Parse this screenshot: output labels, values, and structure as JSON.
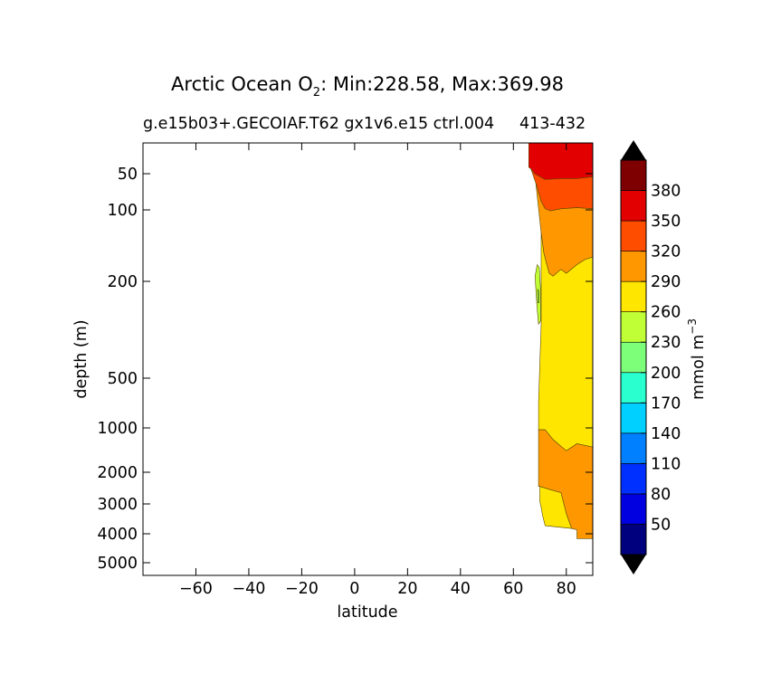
{
  "chart_data": {
    "type": "contour",
    "title": {
      "prefix": "Arctic Ocean O",
      "subscript": "2",
      "suffix": ": Min:228.58, Max:369.98"
    },
    "subtitle_left": "g.e15b03+.GECOIAF.T62 gx1v6.e15 ctrl.004",
    "subtitle_right": "413-432",
    "xlabel": "latitude",
    "ylabel": "depth (m)",
    "xlim": [
      -80,
      90
    ],
    "x_ticks": [
      {
        "value": -60,
        "label": "−60"
      },
      {
        "value": -40,
        "label": "−40"
      },
      {
        "value": -20,
        "label": "−20"
      },
      {
        "value": 0,
        "label": "0"
      },
      {
        "value": 20,
        "label": "20"
      },
      {
        "value": 40,
        "label": "40"
      },
      {
        "value": 60,
        "label": "60"
      },
      {
        "value": 80,
        "label": "80"
      }
    ],
    "y_ticks": [
      {
        "value": 50,
        "label": "50"
      },
      {
        "value": 100,
        "label": "100"
      },
      {
        "value": 200,
        "label": "200"
      },
      {
        "value": 500,
        "label": "500"
      },
      {
        "value": 1000,
        "label": "1000"
      },
      {
        "value": 2000,
        "label": "2000"
      },
      {
        "value": 3000,
        "label": "3000"
      },
      {
        "value": 4000,
        "label": "4000"
      },
      {
        "value": 5000,
        "label": "5000"
      }
    ],
    "colorbar": {
      "label_main": "mmol m",
      "label_sup": "−3",
      "levels": [
        20,
        50,
        80,
        110,
        140,
        170,
        200,
        230,
        260,
        290,
        320,
        350,
        380,
        410
      ],
      "tick_labels": [
        "50",
        "80",
        "110",
        "140",
        "170",
        "200",
        "230",
        "260",
        "290",
        "320",
        "350",
        "380"
      ],
      "colors": [
        "#00007f",
        "#0000e0",
        "#0030ff",
        "#0080ff",
        "#00d0ff",
        "#2affd0",
        "#7dff7a",
        "#c0ff36",
        "#ffe600",
        "#ff9800",
        "#ff4d00",
        "#e20000",
        "#7f0000"
      ],
      "extend_low_color": "#000000",
      "extend_high_color": "#000000"
    },
    "regions": [
      {
        "level_color": "#e20000",
        "range": "350-380",
        "outline": [
          [
            65.8,
            30
          ],
          [
            90,
            30
          ],
          [
            90,
            53
          ],
          [
            84,
            55
          ],
          [
            78,
            55
          ],
          [
            72,
            56
          ],
          [
            70,
            53
          ],
          [
            68,
            50
          ],
          [
            66.6,
            46
          ],
          [
            65.8,
            45
          ]
        ]
      },
      {
        "level_color": "#ff4d00",
        "range": "320-350",
        "outline": [
          [
            66.6,
            46
          ],
          [
            68,
            50
          ],
          [
            70,
            53
          ],
          [
            72,
            56
          ],
          [
            78,
            55
          ],
          [
            84,
            55
          ],
          [
            90,
            53
          ],
          [
            90,
            98
          ],
          [
            84,
            96
          ],
          [
            78,
            98
          ],
          [
            74,
            101
          ],
          [
            72,
            98
          ],
          [
            70.5,
            85
          ],
          [
            68.5,
            60
          ]
        ]
      },
      {
        "level_color": "#ff9800",
        "range": "290-320",
        "outline": [
          [
            68.5,
            60
          ],
          [
            70.5,
            85
          ],
          [
            72,
            98
          ],
          [
            74,
            101
          ],
          [
            78,
            98
          ],
          [
            84,
            96
          ],
          [
            90,
            98
          ],
          [
            90,
            158
          ],
          [
            87,
            162
          ],
          [
            84,
            170
          ],
          [
            80,
            185
          ],
          [
            78,
            178
          ],
          [
            75,
            190
          ],
          [
            73.5,
            185
          ],
          [
            72.5,
            168
          ],
          [
            71.5,
            152
          ],
          [
            70.5,
            125
          ]
        ]
      },
      {
        "level_color": "#ffe600",
        "range": "260-290",
        "outline": [
          [
            70.5,
            125
          ],
          [
            71.5,
            152
          ],
          [
            72.5,
            168
          ],
          [
            73.5,
            185
          ],
          [
            75,
            190
          ],
          [
            78,
            178
          ],
          [
            80,
            185
          ],
          [
            84,
            170
          ],
          [
            87,
            162
          ],
          [
            90,
            158
          ],
          [
            90,
            1350
          ],
          [
            84,
            1280
          ],
          [
            80,
            1430
          ],
          [
            75,
            1200
          ],
          [
            72,
            1030
          ],
          [
            69.5,
            1030
          ],
          [
            69.5,
            700
          ],
          [
            70.5,
            300
          ],
          [
            70.5,
            260
          ]
        ]
      },
      {
        "level_color": "#c0ff36",
        "range": "230-260",
        "outline": [
          [
            69,
            170
          ],
          [
            69.8,
            175
          ],
          [
            70.3,
            220
          ],
          [
            70.3,
            290
          ],
          [
            69.5,
            300
          ],
          [
            69,
            260
          ],
          [
            68.5,
            215
          ],
          [
            68.2,
            190
          ]
        ]
      },
      {
        "level_color": "#7dff7a",
        "range": "200-230",
        "outline": [
          [
            69.2,
            215
          ],
          [
            69.6,
            220
          ],
          [
            69.6,
            245
          ],
          [
            69.2,
            245
          ]
        ]
      },
      {
        "level_color": "#ff9800",
        "range": "290-320",
        "outline": [
          [
            69.5,
            1030
          ],
          [
            72,
            1030
          ],
          [
            75,
            1200
          ],
          [
            80,
            1430
          ],
          [
            84,
            1280
          ],
          [
            90,
            1350
          ],
          [
            90,
            4150
          ],
          [
            84,
            4150
          ],
          [
            84,
            3850
          ],
          [
            82,
            3800
          ],
          [
            80,
            3300
          ],
          [
            78,
            2600
          ],
          [
            74,
            2500
          ],
          [
            70,
            2400
          ],
          [
            69.5,
            2400
          ]
        ]
      },
      {
        "level_color": "#ffe600",
        "range": "260-290",
        "outline": [
          [
            70,
            2400
          ],
          [
            74,
            2500
          ],
          [
            78,
            2600
          ],
          [
            80,
            3300
          ],
          [
            82,
            3800
          ],
          [
            82,
            3800
          ],
          [
            72,
            3700
          ],
          [
            71,
            3350
          ],
          [
            70.5,
            3100
          ],
          [
            70,
            2900
          ]
        ]
      }
    ]
  }
}
